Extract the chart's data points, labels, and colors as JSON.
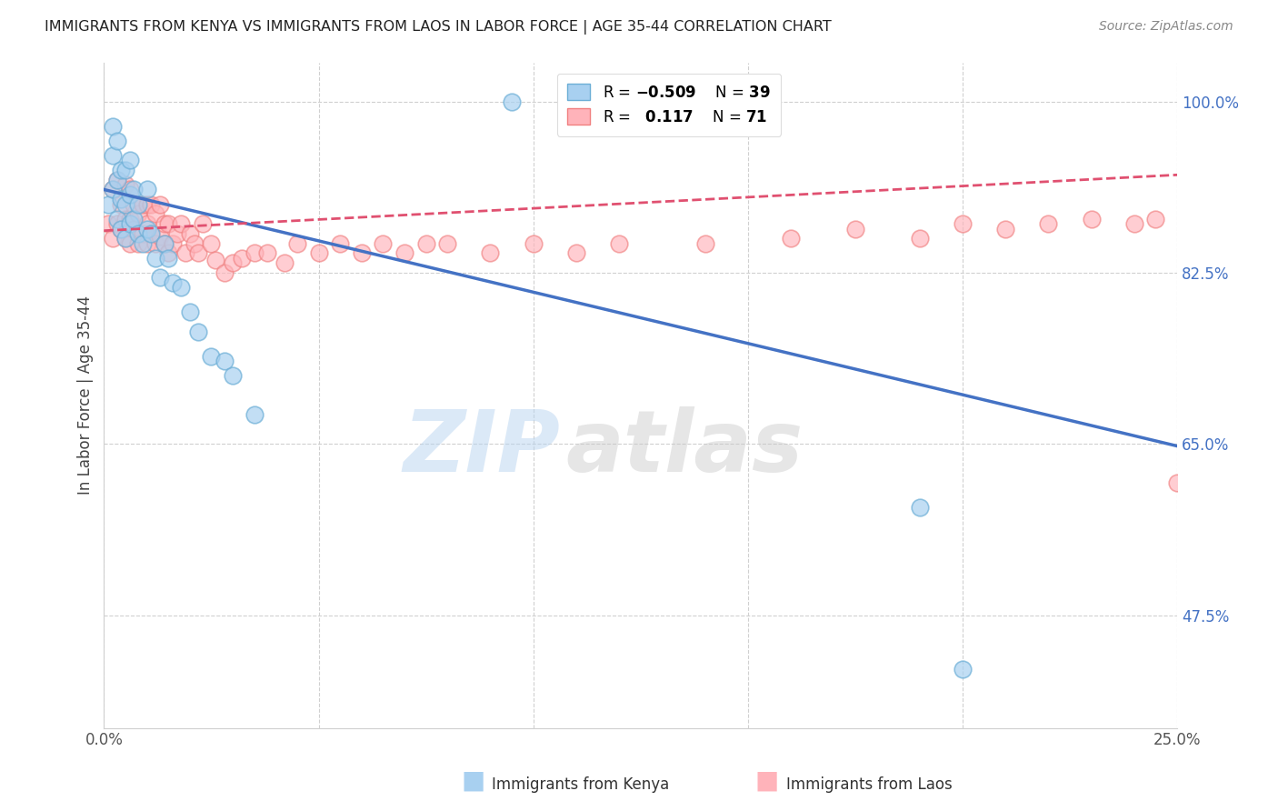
{
  "title": "IMMIGRANTS FROM KENYA VS IMMIGRANTS FROM LAOS IN LABOR FORCE | AGE 35-44 CORRELATION CHART",
  "source": "Source: ZipAtlas.com",
  "ylabel": "In Labor Force | Age 35-44",
  "xlim": [
    0.0,
    0.25
  ],
  "ylim": [
    0.36,
    1.04
  ],
  "xticks": [
    0.0,
    0.05,
    0.1,
    0.15,
    0.2,
    0.25
  ],
  "xticklabels": [
    "0.0%",
    "",
    "",
    "",
    "",
    "25.0%"
  ],
  "yticks": [
    0.475,
    0.65,
    0.825,
    1.0
  ],
  "yticklabels": [
    "47.5%",
    "65.0%",
    "82.5%",
    "100.0%"
  ],
  "kenya_scatter_x": [
    0.001,
    0.002,
    0.002,
    0.002,
    0.003,
    0.003,
    0.003,
    0.004,
    0.004,
    0.004,
    0.005,
    0.005,
    0.005,
    0.006,
    0.006,
    0.006,
    0.007,
    0.007,
    0.008,
    0.008,
    0.009,
    0.01,
    0.01,
    0.011,
    0.012,
    0.013,
    0.014,
    0.015,
    0.016,
    0.018,
    0.02,
    0.022,
    0.025,
    0.028,
    0.03,
    0.035,
    0.095,
    0.19,
    0.2
  ],
  "kenya_scatter_y": [
    0.895,
    0.91,
    0.945,
    0.975,
    0.88,
    0.92,
    0.96,
    0.87,
    0.9,
    0.93,
    0.86,
    0.895,
    0.93,
    0.875,
    0.905,
    0.94,
    0.88,
    0.91,
    0.865,
    0.895,
    0.855,
    0.87,
    0.91,
    0.865,
    0.84,
    0.82,
    0.855,
    0.84,
    0.815,
    0.81,
    0.785,
    0.765,
    0.74,
    0.735,
    0.72,
    0.68,
    1.0,
    0.585,
    0.42
  ],
  "laos_scatter_x": [
    0.001,
    0.002,
    0.002,
    0.003,
    0.003,
    0.004,
    0.004,
    0.005,
    0.005,
    0.005,
    0.006,
    0.006,
    0.006,
    0.007,
    0.007,
    0.008,
    0.008,
    0.009,
    0.009,
    0.01,
    0.01,
    0.01,
    0.011,
    0.011,
    0.012,
    0.012,
    0.013,
    0.013,
    0.014,
    0.014,
    0.015,
    0.015,
    0.016,
    0.017,
    0.018,
    0.019,
    0.02,
    0.021,
    0.022,
    0.023,
    0.025,
    0.026,
    0.028,
    0.03,
    0.032,
    0.035,
    0.038,
    0.042,
    0.045,
    0.05,
    0.055,
    0.06,
    0.065,
    0.07,
    0.075,
    0.08,
    0.09,
    0.1,
    0.11,
    0.12,
    0.14,
    0.16,
    0.175,
    0.19,
    0.2,
    0.21,
    0.22,
    0.23,
    0.24,
    0.245,
    0.25
  ],
  "laos_scatter_y": [
    0.875,
    0.91,
    0.86,
    0.875,
    0.92,
    0.87,
    0.895,
    0.86,
    0.88,
    0.915,
    0.855,
    0.88,
    0.91,
    0.87,
    0.895,
    0.855,
    0.885,
    0.865,
    0.895,
    0.875,
    0.855,
    0.895,
    0.865,
    0.895,
    0.855,
    0.885,
    0.862,
    0.895,
    0.855,
    0.875,
    0.845,
    0.875,
    0.855,
    0.865,
    0.875,
    0.845,
    0.865,
    0.855,
    0.845,
    0.875,
    0.855,
    0.838,
    0.825,
    0.835,
    0.84,
    0.845,
    0.845,
    0.835,
    0.855,
    0.845,
    0.855,
    0.845,
    0.855,
    0.845,
    0.855,
    0.855,
    0.845,
    0.855,
    0.845,
    0.855,
    0.855,
    0.86,
    0.87,
    0.86,
    0.875,
    0.87,
    0.875,
    0.88,
    0.875,
    0.88,
    0.61
  ],
  "kenya_line_x": [
    0.0,
    0.25
  ],
  "kenya_line_y": [
    0.91,
    0.648
  ],
  "laos_line_x": [
    0.0,
    0.25
  ],
  "laos_line_y": [
    0.868,
    0.925
  ],
  "watermark_zip": "ZIP",
  "watermark_atlas": "atlas",
  "kenya_color_face": "#a8d0f0",
  "kenya_color_edge": "#6baed6",
  "laos_color_face": "#ffb3ba",
  "laos_color_edge": "#f08080",
  "kenya_line_color": "#4472c4",
  "laos_line_color": "#e05070",
  "grid_color": "#d0d0d0",
  "title_color": "#222222",
  "source_color": "#888888",
  "yaxis_color": "#4472c4"
}
